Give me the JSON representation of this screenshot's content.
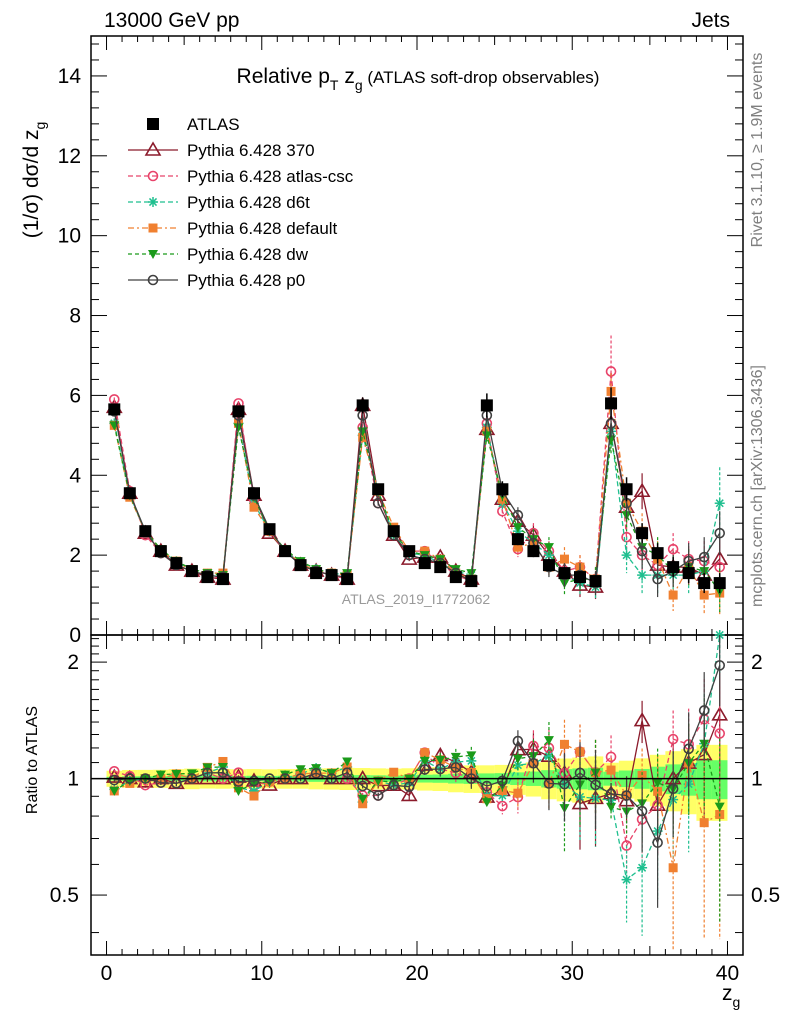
{
  "header": {
    "left": "13000 GeV pp",
    "right": "Jets"
  },
  "title": {
    "main": "Relative p",
    "sub1": "T",
    "mid": " z",
    "sub2": "g",
    "suffix": " (ATLAS soft-drop observables)"
  },
  "watermark": "ATLAS_2019_I1772062",
  "side_texts": {
    "rivet": "Rivet 3.1.10, ≥ 1.9M events",
    "mcplots": "mcplots.cern.ch [arXiv:1306.3436]"
  },
  "axis_labels": {
    "ylabel_main": "(1/σ) dσ/d z",
    "ylabel_main_sub": "g",
    "ylabel_ratio": "Ratio to ATLAS",
    "xlabel": "z",
    "xlabel_sub": "g"
  },
  "colors": {
    "ATLAS": "#000000",
    "370": "#8b1a2b",
    "atlas-csc": "#e8436a",
    "d6t": "#1fbf8f",
    "default": "#f08030",
    "dw": "#1a9a1a",
    "p0": "#404040",
    "band_outer": "#ffff66",
    "band_inner": "#66ff66"
  },
  "chart_data": {
    "type": "scatter",
    "x": [
      0.5,
      1.5,
      2.5,
      3.5,
      4.5,
      5.5,
      6.5,
      7.5,
      8.5,
      9.5,
      10.5,
      11.5,
      12.5,
      13.5,
      14.5,
      15.5,
      16.5,
      17.5,
      18.5,
      19.5,
      20.5,
      21.5,
      22.5,
      23.5,
      24.5,
      25.5,
      26.5,
      27.5,
      28.5,
      29.5,
      30.5,
      31.5,
      32.5,
      33.5,
      34.5,
      35.5,
      36.5,
      37.5,
      38.5,
      39.5
    ],
    "xlim": [
      -1,
      41
    ],
    "ylim_main": [
      0,
      15
    ],
    "ylim_ratio": [
      0.35,
      2.35
    ],
    "xticks": [
      0,
      10,
      20,
      30,
      40
    ],
    "yticks_main": [
      0,
      2,
      4,
      6,
      8,
      10,
      12,
      14
    ],
    "yticks_ratio": [
      0.5,
      1,
      2
    ],
    "legend": [
      {
        "key": "ATLAS",
        "label": "ATLAS"
      },
      {
        "key": "370",
        "label": "Pythia 6.428 370"
      },
      {
        "key": "atlas-csc",
        "label": "Pythia 6.428 atlas-csc"
      },
      {
        "key": "d6t",
        "label": "Pythia 6.428 d6t"
      },
      {
        "key": "default",
        "label": "Pythia 6.428 default"
      },
      {
        "key": "dw",
        "label": "Pythia 6.428 dw"
      },
      {
        "key": "p0",
        "label": "Pythia 6.428 p0"
      }
    ],
    "atlas": {
      "values": [
        5.65,
        3.55,
        2.6,
        2.1,
        1.8,
        1.6,
        1.45,
        1.4,
        5.6,
        3.55,
        2.65,
        2.1,
        1.75,
        1.55,
        1.5,
        1.4,
        5.75,
        3.65,
        2.6,
        2.1,
        1.8,
        1.7,
        1.45,
        1.35,
        5.75,
        3.65,
        2.4,
        2.1,
        1.75,
        1.55,
        1.45,
        1.35,
        5.8,
        3.65,
        2.55,
        2.05,
        1.7,
        1.55,
        1.3,
        1.3
      ],
      "errors": [
        0.1,
        0.08,
        0.06,
        0.05,
        0.05,
        0.05,
        0.04,
        0.04,
        0.15,
        0.1,
        0.07,
        0.06,
        0.05,
        0.05,
        0.05,
        0.05,
        0.2,
        0.12,
        0.08,
        0.07,
        0.07,
        0.07,
        0.07,
        0.07,
        0.3,
        0.2,
        0.15,
        0.15,
        0.15,
        0.15,
        0.15,
        0.15,
        0.4,
        0.3,
        0.25,
        0.25,
        0.25,
        0.25,
        0.25,
        0.25
      ]
    },
    "series": [
      {
        "name": "Pythia 6.428 370",
        "key": "370",
        "marker": "triangle",
        "dash": "",
        "values": [
          5.7,
          3.55,
          2.55,
          2.1,
          1.75,
          1.6,
          1.45,
          1.4,
          5.65,
          3.5,
          2.55,
          2.1,
          1.75,
          1.6,
          1.5,
          1.4,
          5.75,
          3.5,
          2.5,
          1.9,
          1.95,
          1.95,
          1.6,
          1.4,
          5.15,
          3.4,
          2.85,
          2.5,
          2.0,
          1.6,
          1.25,
          1.2,
          5.3,
          3.2,
          3.6,
          1.75,
          1.7,
          1.7,
          1.5,
          1.9
        ],
        "errors": [
          0.05,
          0.04,
          0.04,
          0.03,
          0.03,
          0.03,
          0.03,
          0.03,
          0.06,
          0.05,
          0.04,
          0.04,
          0.03,
          0.03,
          0.03,
          0.03,
          0.08,
          0.06,
          0.05,
          0.05,
          0.06,
          0.08,
          0.08,
          0.08,
          0.15,
          0.15,
          0.2,
          0.25,
          0.25,
          0.3,
          0.3,
          0.3,
          0.35,
          0.4,
          0.45,
          0.45,
          0.4,
          0.45,
          0.5,
          0.55
        ]
      },
      {
        "name": "Pythia 6.428 atlas-csc",
        "key": "atlas-csc",
        "marker": "circle-open",
        "dash": "5,3",
        "values": [
          5.9,
          3.6,
          2.5,
          2.05,
          1.75,
          1.6,
          1.5,
          1.4,
          5.8,
          3.4,
          2.6,
          2.1,
          1.8,
          1.6,
          1.5,
          1.4,
          5.2,
          3.3,
          2.5,
          2.1,
          2.1,
          1.8,
          1.5,
          1.35,
          5.3,
          3.1,
          2.15,
          2.55,
          2.1,
          1.6,
          1.7,
          1.4,
          6.6,
          2.45,
          2.0,
          1.75,
          2.15,
          1.9,
          1.85,
          1.7
        ],
        "errors": [
          0.05,
          0.04,
          0.04,
          0.03,
          0.03,
          0.03,
          0.03,
          0.03,
          0.06,
          0.05,
          0.04,
          0.04,
          0.03,
          0.03,
          0.03,
          0.03,
          0.08,
          0.06,
          0.05,
          0.05,
          0.06,
          0.08,
          0.08,
          0.08,
          0.15,
          0.15,
          0.2,
          0.25,
          0.25,
          0.3,
          0.3,
          0.3,
          0.9,
          0.4,
          0.45,
          0.45,
          0.4,
          0.45,
          0.5,
          0.55
        ]
      },
      {
        "name": "Pythia 6.428 d6t",
        "key": "d6t",
        "marker": "star",
        "dash": "5,3",
        "values": [
          5.3,
          3.5,
          2.6,
          2.1,
          1.85,
          1.6,
          1.5,
          1.5,
          5.3,
          3.3,
          2.6,
          2.1,
          1.8,
          1.65,
          1.55,
          1.5,
          5.0,
          3.6,
          2.5,
          2.05,
          2.0,
          1.8,
          1.6,
          1.5,
          5.2,
          3.3,
          2.6,
          2.3,
          2.0,
          1.5,
          1.3,
          1.2,
          5.1,
          2.0,
          1.5,
          1.5,
          1.5,
          1.5,
          1.6,
          3.3
        ],
        "errors": [
          0.05,
          0.04,
          0.04,
          0.03,
          0.03,
          0.03,
          0.03,
          0.03,
          0.06,
          0.05,
          0.04,
          0.04,
          0.03,
          0.03,
          0.03,
          0.03,
          0.08,
          0.06,
          0.05,
          0.05,
          0.06,
          0.08,
          0.08,
          0.08,
          0.15,
          0.15,
          0.2,
          0.25,
          0.25,
          0.3,
          0.3,
          0.3,
          0.35,
          0.45,
          0.5,
          0.5,
          0.45,
          0.5,
          0.55,
          0.9
        ]
      },
      {
        "name": "Pythia 6.428 default",
        "key": "default",
        "marker": "square",
        "dash": "6,3,2,3",
        "values": [
          5.25,
          3.45,
          2.6,
          2.1,
          1.85,
          1.6,
          1.55,
          1.55,
          5.3,
          3.2,
          2.6,
          2.1,
          1.8,
          1.6,
          1.55,
          1.5,
          4.95,
          3.6,
          2.7,
          2.1,
          2.1,
          1.9,
          1.55,
          1.4,
          5.1,
          3.4,
          2.2,
          2.3,
          1.7,
          1.9,
          1.7,
          1.4,
          6.1,
          3.3,
          2.6,
          1.9,
          1.0,
          1.7,
          1.0,
          1.05
        ],
        "errors": [
          0.05,
          0.04,
          0.04,
          0.03,
          0.03,
          0.03,
          0.03,
          0.03,
          0.06,
          0.05,
          0.04,
          0.04,
          0.03,
          0.03,
          0.03,
          0.03,
          0.08,
          0.06,
          0.05,
          0.05,
          0.06,
          0.08,
          0.08,
          0.08,
          0.15,
          0.15,
          0.2,
          0.25,
          0.25,
          0.3,
          0.3,
          0.3,
          0.45,
          0.4,
          0.45,
          0.45,
          0.4,
          0.45,
          0.5,
          0.55
        ]
      },
      {
        "name": "Pythia 6.428 dw",
        "key": "dw",
        "marker": "triangle-down",
        "dash": "4,3",
        "values": [
          5.25,
          3.5,
          2.6,
          2.15,
          1.85,
          1.65,
          1.55,
          1.5,
          5.2,
          3.45,
          2.6,
          2.15,
          1.85,
          1.65,
          1.55,
          1.55,
          5.1,
          3.6,
          2.55,
          2.1,
          2.0,
          1.9,
          1.65,
          1.55,
          5.0,
          3.5,
          2.7,
          2.4,
          2.2,
          1.3,
          1.4,
          1.4,
          4.9,
          3.0,
          2.2,
          2.0,
          1.6,
          1.7,
          1.6,
          1.1
        ],
        "errors": [
          0.05,
          0.04,
          0.04,
          0.03,
          0.03,
          0.03,
          0.03,
          0.03,
          0.06,
          0.05,
          0.04,
          0.04,
          0.03,
          0.03,
          0.03,
          0.03,
          0.08,
          0.06,
          0.05,
          0.05,
          0.06,
          0.08,
          0.08,
          0.08,
          0.15,
          0.15,
          0.2,
          0.25,
          0.25,
          0.3,
          0.3,
          0.3,
          0.35,
          0.4,
          0.45,
          0.45,
          0.4,
          0.45,
          0.5,
          0.55
        ]
      },
      {
        "name": "Pythia 6.428 p0",
        "key": "p0",
        "marker": "circle-open",
        "dash": "",
        "values": [
          5.6,
          3.55,
          2.6,
          2.05,
          1.75,
          1.6,
          1.5,
          1.45,
          5.5,
          3.5,
          2.65,
          2.1,
          1.75,
          1.6,
          1.5,
          1.45,
          5.5,
          3.3,
          2.5,
          2.0,
          1.9,
          1.8,
          1.55,
          1.35,
          5.5,
          3.6,
          3.0,
          2.3,
          1.7,
          1.5,
          1.5,
          1.3,
          5.3,
          3.3,
          2.1,
          1.4,
          1.6,
          1.85,
          1.95,
          2.55
        ],
        "errors": [
          0.05,
          0.04,
          0.04,
          0.03,
          0.03,
          0.03,
          0.03,
          0.03,
          0.06,
          0.05,
          0.04,
          0.04,
          0.03,
          0.03,
          0.03,
          0.03,
          0.08,
          0.06,
          0.05,
          0.05,
          0.06,
          0.08,
          0.08,
          0.08,
          0.15,
          0.15,
          0.2,
          0.25,
          0.25,
          0.3,
          0.3,
          0.3,
          0.35,
          0.4,
          0.45,
          0.45,
          0.4,
          0.45,
          0.5,
          0.55
        ]
      }
    ]
  }
}
